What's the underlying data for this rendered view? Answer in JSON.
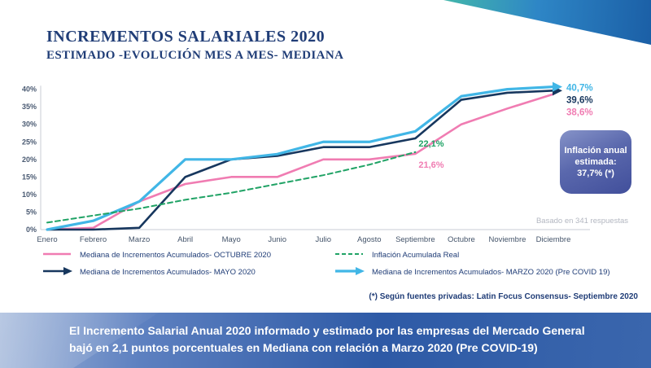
{
  "page": {
    "title_line1": "INCREMENTOS SALARIALES 2020",
    "title_line2": "ESTIMADO -EVOLUCIÓN MES A MES- MEDIANA"
  },
  "chart_data": {
    "type": "line",
    "categories": [
      "Enero",
      "Febrero",
      "Marzo",
      "Abril",
      "Mayo",
      "Junio",
      "Julio",
      "Agosto",
      "Septiembre",
      "Octubre",
      "Noviembre",
      "Diciembre"
    ],
    "y_ticks": [
      0,
      5,
      10,
      15,
      20,
      25,
      30,
      35,
      40
    ],
    "y_tick_labels": [
      "0%",
      "5%",
      "10%",
      "15%",
      "20%",
      "25%",
      "30%",
      "35%",
      "40%"
    ],
    "ylim": [
      0,
      42
    ],
    "grid": false,
    "legend_position": "bottom",
    "series": [
      {
        "name": "Mediana de Incrementos Acumulados- OCTUBRE 2020",
        "color": "#F07CB2",
        "dash": false,
        "arrow": false,
        "width": 2.6,
        "end_label": "38,6%",
        "values": [
          0,
          0.5,
          8,
          13,
          15,
          15,
          20,
          20,
          21.6,
          30,
          34.5,
          38.6
        ]
      },
      {
        "name": "Mediana de Incrementos Acumulados- MAYO 2020",
        "color": "#17375E",
        "dash": false,
        "arrow": true,
        "width": 2.6,
        "end_label": "39,6%",
        "values": [
          0,
          0,
          0.5,
          15,
          20,
          21,
          23.5,
          23.5,
          26,
          37,
          39,
          39.6
        ]
      },
      {
        "name": "Mediana de Incrementos Acumulados- MARZO 2020 (Pre COVID 19)",
        "color": "#41B6E6",
        "dash": false,
        "arrow": true,
        "width": 3.2,
        "end_label": "40,7%",
        "values": [
          0,
          2.5,
          8,
          20,
          20,
          21.5,
          25,
          25,
          28,
          38,
          40,
          40.7
        ]
      },
      {
        "name": "Inflación Acumulada Real",
        "color": "#21A366",
        "dash": true,
        "arrow": false,
        "width": 2,
        "end_label": null,
        "values": [
          2,
          4,
          6,
          8.5,
          10.5,
          13,
          15.5,
          18.5,
          22.1,
          null,
          null,
          null
        ]
      }
    ],
    "annotations": [
      {
        "text": "22,1%",
        "color": "#21A366",
        "month_index": 8,
        "value": 22.1,
        "dy": -7
      },
      {
        "text": "21,6%",
        "color": "#F07CB2",
        "month_index": 8,
        "value": 21.6,
        "dy": 17
      }
    ],
    "title": "INCREMENTOS SALARIALES 2020 - ESTIMADO EVOLUCIÓN MES A MES - MEDIANA"
  },
  "legend": {
    "items": [
      {
        "label": "Mediana de Incrementos Acumulados- OCTUBRE 2020",
        "series": 0
      },
      {
        "label": "Inflación Acumulada Real",
        "series": 3
      },
      {
        "label": "Mediana de Incrementos Acumulados- MAYO 2020",
        "series": 1
      },
      {
        "label": "Mediana de Incrementos Acumulados- MARZO 2020 (Pre COVID 19)",
        "series": 2
      }
    ]
  },
  "inflation_badge": {
    "text": "Inflación anual estimada:",
    "value": "37,7% (*)"
  },
  "notes": {
    "responses": "Basado en 341 respuestas",
    "source": "(*) Según fuentes privadas: Latin Focus Consensus- Septiembre 2020"
  },
  "banner": {
    "text": "El Incremento Salarial Anual 2020 informado y estimado por las empresas del Mercado General bajó en 2,1 puntos porcentuales en Mediana con relación a Marzo 2020 (Pre COVID-19)"
  },
  "colors": {
    "pink": "#F07CB2",
    "navy": "#17375E",
    "cyan": "#41B6E6",
    "green": "#21A366",
    "title": "#203D77",
    "badge_gradient_from": "#8693C8",
    "badge_gradient_to": "#414F9B",
    "banner_gradient_from": "#9DB3D8",
    "banner_gradient_to": "#2E5AA6",
    "corner_teal": "#43B7AB",
    "corner_blue": "#1B5FA6"
  }
}
